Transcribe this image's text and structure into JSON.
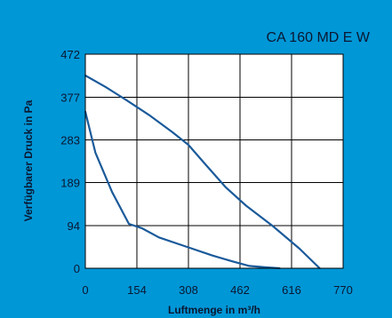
{
  "chart_data": {
    "type": "line",
    "title": "CA 160 MD E W",
    "xlabel": "Luftmenge in m³/h",
    "ylabel": "Verfügbarer Druck in Pa",
    "xlim": [
      0,
      770
    ],
    "ylim": [
      0,
      472
    ],
    "x_ticks": [
      "0",
      "154",
      "308",
      "462",
      "616",
      "770"
    ],
    "y_ticks": [
      "0",
      "94",
      "189",
      "283",
      "377",
      "472"
    ],
    "grid": true,
    "colors": {
      "background": "#0097d7",
      "plot_area": "#ffffff",
      "line": "#1a5a9a",
      "grid": "#000000",
      "text": "#0b1730"
    },
    "series": [
      {
        "x": [
          0,
          60,
          120,
          190,
          260,
          308,
          360,
          420,
          480,
          560,
          640,
          700
        ],
        "y": [
          425,
          400,
          372,
          338,
          300,
          272,
          228,
          178,
          138,
          93,
          43,
          0
        ]
      },
      {
        "x": [
          0,
          30,
          80,
          130,
          170,
          220,
          300,
          380,
          440,
          490,
          540,
          580
        ],
        "y": [
          345,
          255,
          168,
          98,
          88,
          68,
          48,
          28,
          15,
          5,
          2,
          0
        ]
      }
    ]
  }
}
